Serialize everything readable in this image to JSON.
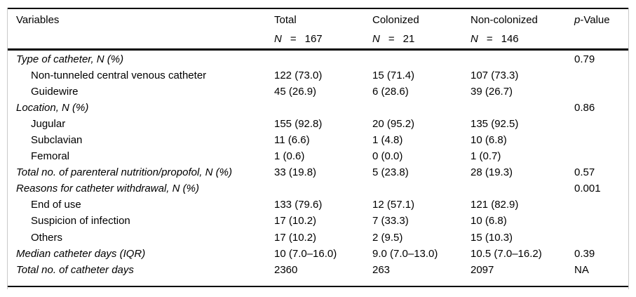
{
  "table": {
    "header": {
      "variables_label": "Variables",
      "columns": [
        {
          "label": "Total",
          "n_label": "N",
          "eq": "=",
          "n": "167"
        },
        {
          "label": "Colonized",
          "n_label": "N",
          "eq": "=",
          "n": "21"
        },
        {
          "label": "Non-colonized",
          "n_label": "N",
          "eq": "=",
          "n": "146"
        }
      ],
      "p_value": {
        "p": "p",
        "rest": "-Value"
      }
    },
    "rows": [
      {
        "label": "Type of catheter, N (%)",
        "variant": "category",
        "total": "",
        "colonized": "",
        "non_colonized": "",
        "p_value": "0.79"
      },
      {
        "label": "Non-tunneled central venous catheter",
        "variant": "indent",
        "total": "122 (73.0)",
        "colonized": "15 (71.4)",
        "non_colonized": "107 (73.3)",
        "p_value": ""
      },
      {
        "label": "Guidewire",
        "variant": "indent",
        "total": "45 (26.9)",
        "colonized": "6 (28.6)",
        "non_colonized": "39 (26.7)",
        "p_value": ""
      },
      {
        "label": "Location, N (%)",
        "variant": "category",
        "total": "",
        "colonized": "",
        "non_colonized": "",
        "p_value": "0.86"
      },
      {
        "label": "Jugular",
        "variant": "indent",
        "total": "155 (92.8)",
        "colonized": "20 (95.2)",
        "non_colonized": "135 (92.5)",
        "p_value": ""
      },
      {
        "label": "Subclavian",
        "variant": "indent",
        "total": "11 (6.6)",
        "colonized": "1 (4.8)",
        "non_colonized": "10 (6.8)",
        "p_value": ""
      },
      {
        "label": "Femoral",
        "variant": "indent",
        "total": "1 (0.6)",
        "colonized": "0 (0.0)",
        "non_colonized": "1 (0.7)",
        "p_value": ""
      },
      {
        "label": "Total no. of parenteral nutrition/propofol, N (%)",
        "variant": "category",
        "total": "33 (19.8)",
        "colonized": "5 (23.8)",
        "non_colonized": "28 (19.3)",
        "p_value": "0.57"
      },
      {
        "label": "Reasons for catheter withdrawal, N (%)",
        "variant": "category",
        "total": "",
        "colonized": "",
        "non_colonized": "",
        "p_value": "0.001"
      },
      {
        "label": "End of use",
        "variant": "indent",
        "total": "133 (79.6)",
        "colonized": "12 (57.1)",
        "non_colonized": "121 (82.9)",
        "p_value": ""
      },
      {
        "label": "Suspicion of infection",
        "variant": "indent",
        "total": "17 (10.2)",
        "colonized": "7 (33.3)",
        "non_colonized": "10 (6.8)",
        "p_value": ""
      },
      {
        "label": "Others",
        "variant": "indent",
        "total": "17 (10.2)",
        "colonized": "2 (9.5)",
        "non_colonized": "15 (10.3)",
        "p_value": ""
      },
      {
        "label": "Median catheter days (IQR)",
        "variant": "category",
        "total": "10 (7.0–16.0)",
        "colonized": "9.0 (7.0–13.0)",
        "non_colonized": "10.5 (7.0–16.2)",
        "p_value": "0.39"
      },
      {
        "label": "Total no. of catheter days",
        "variant": "category",
        "total": "2360",
        "colonized": "263",
        "non_colonized": "2097",
        "p_value": "NA"
      }
    ]
  },
  "colors": {
    "rule": "#000000",
    "frame_border": "#c9c9c9",
    "text": "#000000",
    "background": "#ffffff"
  }
}
